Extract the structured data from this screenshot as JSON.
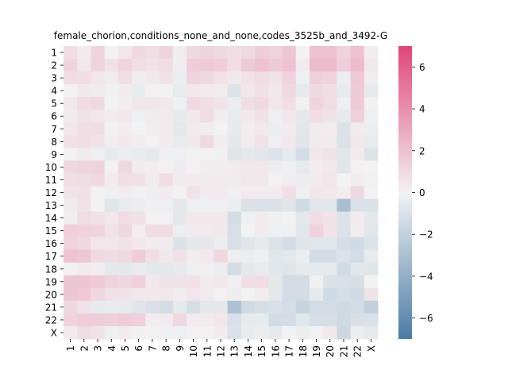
{
  "chart_data": {
    "type": "heatmap",
    "title": "female_chorion,conditions_none_and_none,codes_3525b_and_3492-G",
    "xlabel": "",
    "ylabel": "",
    "row_labels": [
      "1",
      "2",
      "3",
      "4",
      "5",
      "6",
      "7",
      "8",
      "9",
      "10",
      "11",
      "12",
      "13",
      "14",
      "15",
      "16",
      "17",
      "18",
      "19",
      "20",
      "21",
      "22",
      "X"
    ],
    "col_labels": [
      "1",
      "2",
      "3",
      "4",
      "5",
      "6",
      "7",
      "8",
      "9",
      "10",
      "11",
      "12",
      "13",
      "14",
      "15",
      "16",
      "17",
      "18",
      "19",
      "20",
      "21",
      "22",
      "X"
    ],
    "values": [
      [
        0.8,
        0.3,
        1.2,
        0.1,
        0.5,
        1.0,
        0.9,
        1.2,
        0.2,
        1.0,
        1.2,
        1.0,
        0.8,
        1.0,
        1.5,
        1.3,
        1.8,
        0.0,
        2.0,
        2.0,
        1.3,
        2.0,
        0.2
      ],
      [
        1.2,
        0.4,
        1.2,
        0.7,
        1.2,
        0.8,
        0.6,
        0.9,
        0.2,
        1.5,
        1.6,
        1.5,
        0.8,
        1.6,
        2.0,
        1.6,
        2.0,
        0.3,
        2.2,
        2.2,
        1.5,
        2.2,
        0.4
      ],
      [
        0.9,
        0.8,
        0.5,
        0.3,
        0.8,
        0.2,
        0.4,
        0.6,
        -0.3,
        1.2,
        1.0,
        0.6,
        0.4,
        0.6,
        0.9,
        0.6,
        1.3,
        -0.2,
        1.4,
        1.3,
        -0.3,
        1.7,
        0.2
      ],
      [
        0.1,
        0.4,
        0.3,
        -0.1,
        0.3,
        -0.4,
        0.1,
        0.1,
        -0.4,
        0.5,
        0.3,
        0.2,
        -0.9,
        0.5,
        0.7,
        0.4,
        1.0,
        -0.5,
        1.0,
        0.8,
        -0.4,
        1.6,
        -0.5
      ],
      [
        0.4,
        0.9,
        1.0,
        0.0,
        0.2,
        0.5,
        0.5,
        0.4,
        -0.2,
        1.0,
        0.8,
        0.6,
        -0.3,
        0.9,
        1.0,
        0.5,
        0.8,
        -0.1,
        1.2,
        0.9,
        -0.2,
        1.6,
        0.1
      ],
      [
        0.3,
        0.6,
        0.5,
        0.3,
        0.5,
        -0.2,
        0.3,
        0.3,
        -0.5,
        0.4,
        0.9,
        0.2,
        -0.4,
        0.4,
        0.7,
        -0.2,
        0.5,
        -0.6,
        0.8,
        0.6,
        -0.5,
        1.4,
        -0.2
      ],
      [
        0.5,
        0.8,
        0.8,
        0.1,
        0.2,
        0.0,
        0.2,
        0.3,
        -0.6,
        0.3,
        0.2,
        0.0,
        -0.5,
        0.2,
        0.4,
        -0.3,
        0.3,
        -0.7,
        0.3,
        0.2,
        -0.9,
        0.3,
        -0.3
      ],
      [
        0.7,
        0.8,
        0.6,
        0.2,
        0.4,
        0.2,
        0.1,
        0.3,
        -0.4,
        0.4,
        1.0,
        0.2,
        -0.6,
        0.3,
        0.6,
        -0.2,
        0.4,
        -0.8,
        0.3,
        0.3,
        -1.0,
        0.4,
        -0.4
      ],
      [
        0.0,
        0.3,
        -0.2,
        -0.5,
        -0.3,
        -0.4,
        -0.6,
        -0.2,
        -0.2,
        0.1,
        0.1,
        -0.1,
        -0.8,
        -0.6,
        -0.7,
        -0.9,
        -0.5,
        -1.3,
        0.5,
        0.6,
        -0.7,
        0.3,
        -0.9
      ],
      [
        1.1,
        1.2,
        1.3,
        0.1,
        1.1,
        0.3,
        0.2,
        0.1,
        -0.3,
        0.1,
        0.2,
        0.2,
        0.3,
        0.4,
        0.4,
        -0.3,
        -0.2,
        -0.5,
        0.2,
        0.4,
        -0.8,
        0.1,
        0.0
      ],
      [
        0.8,
        0.9,
        1.0,
        0.3,
        0.8,
        0.7,
        0.3,
        0.9,
        0.3,
        0.3,
        0.3,
        0.3,
        0.3,
        0.4,
        0.4,
        0.1,
        0.2,
        -0.3,
        0.3,
        0.5,
        0.0,
        0.2,
        0.1
      ],
      [
        0.6,
        0.7,
        0.1,
        -0.2,
        0.3,
        0.1,
        0.2,
        0.3,
        0.1,
        0.6,
        0.3,
        0.3,
        -0.2,
        0.3,
        0.3,
        0.3,
        0.8,
        -0.2,
        0.5,
        0.4,
        0.2,
        1.0,
        0.0
      ],
      [
        0.3,
        0.6,
        0.0,
        -0.8,
        -0.4,
        -0.3,
        -0.2,
        -0.2,
        -0.6,
        -0.2,
        -0.2,
        -0.2,
        -0.3,
        -1.0,
        -1.0,
        -1.0,
        -0.8,
        -1.4,
        -0.7,
        -0.7,
        -3.0,
        -1.0,
        -1.0
      ],
      [
        0.2,
        0.9,
        0.7,
        0.5,
        0.9,
        0.7,
        0.1,
        0.1,
        -0.6,
        0.4,
        0.4,
        0.4,
        -1.3,
        -0.2,
        0.3,
        -0.1,
        0.0,
        -0.6,
        0.8,
        0.6,
        -0.9,
        0.3,
        -0.6
      ],
      [
        1.4,
        1.3,
        1.2,
        0.7,
        1.1,
        0.2,
        0.9,
        0.9,
        -0.3,
        0.3,
        0.3,
        0.4,
        -1.1,
        0.0,
        0.3,
        -0.2,
        -0.2,
        -0.7,
        1.3,
        0.6,
        -1.0,
        0.2,
        -0.7
      ],
      [
        1.3,
        1.0,
        0.5,
        0.5,
        0.6,
        0.4,
        0.3,
        0.3,
        -1.0,
        -0.6,
        -0.6,
        -0.3,
        -1.1,
        -0.8,
        -0.5,
        -0.9,
        -1.3,
        -0.8,
        -0.7,
        -0.7,
        -1.2,
        -1.4,
        -0.9
      ],
      [
        1.9,
        1.8,
        1.0,
        0.9,
        1.0,
        1.5,
        0.8,
        0.4,
        0.7,
        0.2,
        0.4,
        1.1,
        -0.3,
        -0.3,
        -0.2,
        -0.7,
        -0.6,
        -0.3,
        -1.3,
        -1.3,
        -1.0,
        -1.3,
        -0.4
      ],
      [
        0.1,
        0.3,
        0.2,
        -0.6,
        -0.6,
        -0.4,
        -0.6,
        -0.6,
        -0.5,
        -0.2,
        -0.1,
        -0.3,
        -1.3,
        -0.6,
        -0.4,
        -0.7,
        -0.8,
        -0.5,
        -0.5,
        -0.5,
        -1.4,
        -0.7,
        -0.8
      ],
      [
        1.8,
        1.8,
        1.6,
        1.3,
        1.1,
        1.4,
        0.4,
        0.6,
        0.6,
        0.7,
        0.3,
        0.4,
        -0.1,
        0.8,
        0.9,
        -0.6,
        -1.3,
        -1.3,
        -0.1,
        -1.0,
        -1.1,
        -1.2,
        0.0
      ],
      [
        1.8,
        1.7,
        1.1,
        0.7,
        0.6,
        0.5,
        0.4,
        0.5,
        0.2,
        0.5,
        0.3,
        0.1,
        -0.3,
        0.0,
        0.2,
        -0.6,
        -1.3,
        -1.3,
        -0.5,
        -1.4,
        -1.2,
        -1.4,
        0.6
      ],
      [
        1.1,
        0.6,
        -0.5,
        -0.4,
        -0.5,
        -0.8,
        -1.1,
        -1.3,
        -0.5,
        -1.2,
        -0.6,
        -0.6,
        -2.9,
        -1.4,
        -1.2,
        -1.1,
        -1.2,
        -1.8,
        -1.3,
        -1.3,
        -1.5,
        -1.3,
        -2.0
      ],
      [
        1.3,
        1.5,
        1.5,
        1.4,
        1.5,
        1.4,
        0.2,
        0.3,
        1.1,
        0.3,
        0.3,
        0.5,
        -1.1,
        -0.5,
        -0.4,
        -1.3,
        -1.3,
        -0.7,
        -1.2,
        -1.2,
        -1.5,
        -1.1,
        -1.0
      ],
      [
        0.3,
        0.9,
        0.6,
        -0.2,
        0.3,
        -0.1,
        0.1,
        -0.2,
        -0.2,
        0.1,
        0.1,
        0.3,
        -1.0,
        -0.4,
        -0.3,
        -0.5,
        0.0,
        -0.3,
        0.1,
        0.4,
        -1.6,
        -0.3,
        -0.5
      ]
    ],
    "colorbar": {
      "min": -7,
      "max": 7,
      "ticks": [
        -6,
        -4,
        -2,
        0,
        2,
        4,
        6
      ],
      "tick_labels": [
        "−6",
        "−4",
        "−2",
        "0",
        "2",
        "4",
        "6"
      ],
      "colors": {
        "low": "#4a7ca6",
        "mid": "#f2f2f2",
        "high": "#e0457a"
      }
    },
    "grid": false,
    "legend": "none"
  }
}
